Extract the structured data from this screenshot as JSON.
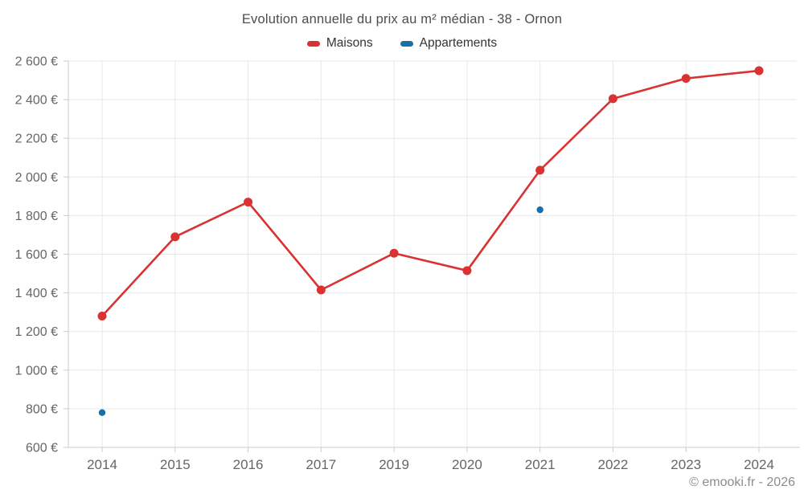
{
  "chart_data": {
    "type": "line",
    "title": "Evolution annuelle du prix au m² médian - 38 - Ornon",
    "categories": [
      "2014",
      "2015",
      "2016",
      "2017",
      "2019",
      "2020",
      "2021",
      "2022",
      "2023",
      "2024"
    ],
    "series": [
      {
        "name": "Maisons",
        "type": "line",
        "color": "#da3232",
        "values": [
          1280,
          1690,
          1870,
          1415,
          1605,
          1515,
          2035,
          2405,
          2510,
          2550
        ]
      },
      {
        "name": "Appartements",
        "type": "scatter",
        "color": "#176fa5",
        "values": [
          780,
          null,
          null,
          null,
          null,
          null,
          1830,
          null,
          null,
          null
        ]
      }
    ],
    "ylim": [
      600,
      2600
    ],
    "ytick_step": 200,
    "ytick_labels": [
      "600 €",
      "800 €",
      "1 000 €",
      "1 200 €",
      "1 400 €",
      "1 600 €",
      "1 800 €",
      "2 000 €",
      "2 200 €",
      "2 400 €",
      "2 600 €"
    ],
    "grid": true,
    "legend_position": "top",
    "axis_text_color": "#666666",
    "grid_color": "#e8e8e8",
    "axis_line_color": "#cccccc"
  },
  "footer": {
    "text": "© emooki.fr - 2026"
  }
}
